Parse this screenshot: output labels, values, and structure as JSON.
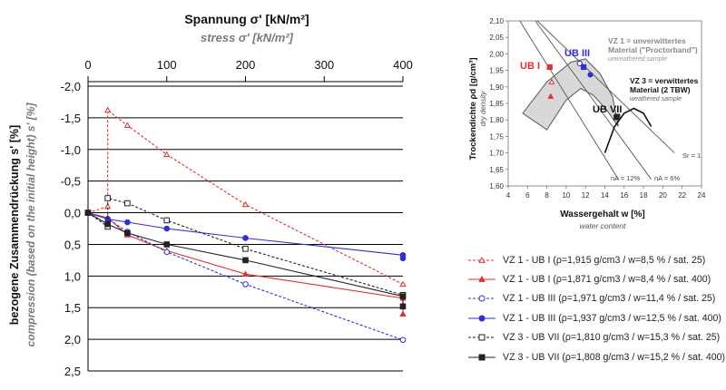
{
  "chart_data": [
    {
      "type": "line",
      "title": "Spannung σ' [kN/m²]",
      "subtitle": "stress σ' [kN/m²]",
      "ylabel": "bezogene Zusammendrückung s' [%]",
      "ylabel_en": "compression (based on the initial height)  s' [%]",
      "x_axis_position": "top",
      "y_inverted": true,
      "xlim": [
        0,
        400
      ],
      "ylim": [
        -2.0,
        2.5
      ],
      "x_ticks": [
        "0",
        "100",
        "200",
        "300",
        "400"
      ],
      "y_ticks": [
        "-2,0",
        "-1,5",
        "-1,0",
        "-0,5",
        "0,0",
        "0,5",
        "1,0",
        "1,5",
        "2,0",
        "2,5"
      ],
      "grid": "horizontal",
      "series": [
        {
          "name": "VZ 1 - UB I (ρ=1,915 g/cm3 / w=8,5 % / sat. 25)",
          "color": "#e03030",
          "dash": true,
          "marker": "triangle-open",
          "points": [
            [
              0,
              0.0
            ],
            [
              25,
              -0.1
            ],
            [
              25,
              -1.62
            ],
            [
              50,
              -1.38
            ],
            [
              100,
              -0.92
            ],
            [
              200,
              -0.13
            ],
            [
              400,
              1.13
            ]
          ]
        },
        {
          "name": "VZ 1 - UB I (ρ=1,871 g/cm3 / w=8,4 % / sat. 400)",
          "color": "#e03030",
          "dash": false,
          "marker": "triangle",
          "points": [
            [
              0,
              0.0
            ],
            [
              25,
              0.08
            ],
            [
              50,
              0.35
            ],
            [
              100,
              0.6
            ],
            [
              200,
              0.97
            ],
            [
              400,
              1.35
            ],
            [
              400,
              1.6
            ]
          ]
        },
        {
          "name": "VZ 1 - UB III (ρ=1,971 g/cm3 / w=11,4 % / sat. 25)",
          "color": "#3030d0",
          "dash": true,
          "marker": "circle-open",
          "points": [
            [
              0,
              0.0
            ],
            [
              25,
              0.1
            ],
            [
              50,
              0.3
            ],
            [
              100,
              0.62
            ],
            [
              200,
              1.13
            ],
            [
              400,
              2.01
            ]
          ]
        },
        {
          "name": "VZ 1 - UB III (ρ=1,937 g/cm3 / w=12,5 % / sat. 400)",
          "color": "#3030d0",
          "dash": false,
          "marker": "circle",
          "points": [
            [
              0,
              0.0
            ],
            [
              25,
              0.1
            ],
            [
              50,
              0.15
            ],
            [
              100,
              0.25
            ],
            [
              200,
              0.4
            ],
            [
              400,
              0.67
            ],
            [
              400,
              0.72
            ]
          ]
        },
        {
          "name": "VZ 3 - UB VII (ρ=1,810 g/cm3 / w=15,3 % / sat. 25)",
          "color": "#222222",
          "dash": true,
          "marker": "square-open",
          "points": [
            [
              0,
              0.0
            ],
            [
              25,
              0.22
            ],
            [
              25,
              -0.23
            ],
            [
              50,
              -0.15
            ],
            [
              100,
              0.12
            ],
            [
              200,
              0.57
            ],
            [
              400,
              1.3
            ]
          ]
        },
        {
          "name": "VZ 3 - UB VII (ρ=1,808 g/cm3 / w=15,2 % / sat. 400)",
          "color": "#222222",
          "dash": false,
          "marker": "square",
          "points": [
            [
              0,
              0.0
            ],
            [
              25,
              0.18
            ],
            [
              50,
              0.32
            ],
            [
              100,
              0.5
            ],
            [
              200,
              0.75
            ],
            [
              400,
              1.32
            ],
            [
              400,
              1.48
            ]
          ]
        }
      ]
    },
    {
      "type": "scatter",
      "xlabel": "Wassergehalt w [%]",
      "xlabel_en": "water content",
      "ylabel": "Trockendichte ρd [g/cm³]",
      "ylabel_en": "dry density",
      "xlim": [
        4,
        24
      ],
      "ylim": [
        1.6,
        2.1
      ],
      "x_ticks": [
        "4",
        "6",
        "8",
        "10",
        "12",
        "14",
        "16",
        "18",
        "20",
        "22",
        "24"
      ],
      "y_ticks": [
        "1,60",
        "1,65",
        "1,70",
        "1,75",
        "1,80",
        "1,85",
        "1,90",
        "1,95",
        "2,00",
        "2,05",
        "2,10"
      ],
      "grid": "none",
      "annotations": {
        "vz1_title": "VZ 1 = unverwittertes",
        "vz1_title2": "Material (\"Proctorband\")",
        "vz1_sub": "unweathered sample",
        "vz3_title": "VZ 3 = verwittertes",
        "vz3_title2": "Material (2 TBW)",
        "vz3_sub": "weathered sample",
        "ub1": "UB I",
        "ub3": "UB III",
        "ub7": "UB VII",
        "sr": "Sr = 1",
        "na12": "nA = 12%",
        "na6": "nA = 6%"
      },
      "saturation_lines": [
        {
          "label": "Sr = 1",
          "points": [
            [
              7.0,
              2.1
            ],
            [
              21.2,
              1.7
            ]
          ]
        },
        {
          "label": "nA = 12%",
          "points": [
            [
              5.2,
              2.1
            ],
            [
              15.4,
              1.62
            ]
          ]
        },
        {
          "label": "nA = 6%",
          "points": [
            [
              6.8,
              2.1
            ],
            [
              18.8,
              1.62
            ]
          ]
        }
      ],
      "proctor_band": {
        "outer": [
          [
            5.5,
            1.82
          ],
          [
            8.0,
            1.915
          ],
          [
            10.5,
            1.975
          ],
          [
            12.0,
            1.985
          ],
          [
            13.5,
            1.94
          ],
          [
            14.8,
            1.87
          ]
        ],
        "inner": [
          [
            8.0,
            1.77
          ],
          [
            10.0,
            1.86
          ],
          [
            11.5,
            1.895
          ],
          [
            12.8,
            1.875
          ],
          [
            14.2,
            1.83
          ],
          [
            15.4,
            1.78
          ]
        ]
      },
      "vz3_curve": [
        [
          14.0,
          1.7
        ],
        [
          15.0,
          1.78
        ],
        [
          16.0,
          1.82
        ],
        [
          17.0,
          1.835
        ],
        [
          18.0,
          1.82
        ],
        [
          18.8,
          1.78
        ]
      ],
      "points": [
        {
          "group": "UB I",
          "w": 8.5,
          "rho": 1.915,
          "marker": "triangle-open",
          "color": "#e03030"
        },
        {
          "group": "UB I",
          "w": 8.4,
          "rho": 1.871,
          "marker": "triangle",
          "color": "#e03030"
        },
        {
          "group": "UB I",
          "w": 8.3,
          "rho": 1.96,
          "marker": "square",
          "color": "#e03030"
        },
        {
          "group": "UB III",
          "w": 11.4,
          "rho": 1.971,
          "marker": "circle-open",
          "color": "#3030d0"
        },
        {
          "group": "UB III",
          "w": 12.5,
          "rho": 1.937,
          "marker": "circle",
          "color": "#3030d0"
        },
        {
          "group": "UB III",
          "w": 11.8,
          "rho": 1.96,
          "marker": "square",
          "color": "#3030d0"
        },
        {
          "group": "UB VII",
          "w": 15.3,
          "rho": 1.81,
          "marker": "square-open",
          "color": "#222222"
        },
        {
          "group": "UB VII",
          "w": 15.2,
          "rho": 1.808,
          "marker": "square",
          "color": "#222222"
        }
      ]
    }
  ]
}
